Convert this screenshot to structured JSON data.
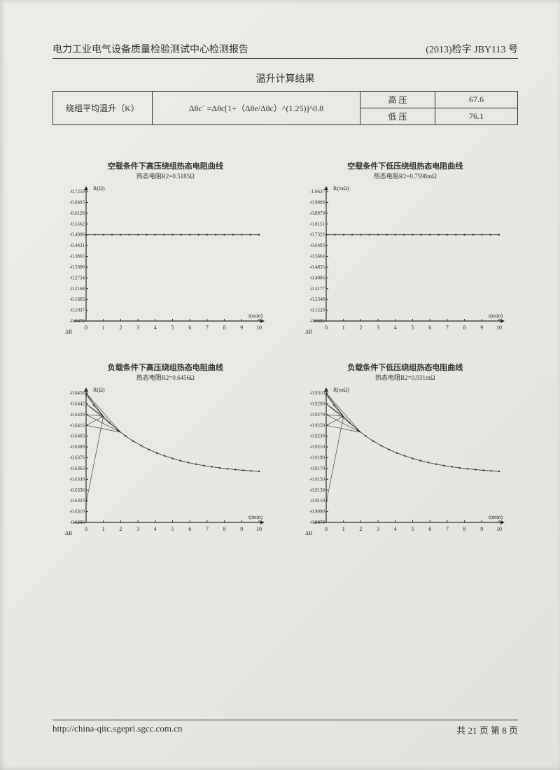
{
  "header": {
    "left": "电力工业电气设备质量检验测试中心检测报告",
    "right": "(2013)检字 JBY113 号"
  },
  "resultTitle": "温升计算结果",
  "table": {
    "rowLabel": "绕组平均温升（K）",
    "formula": "Δθc´ =Δθc[1+（Δθe/Δθc）^(1.25)]^0.8",
    "rows": [
      {
        "label": "高 压",
        "value": "67.6"
      },
      {
        "label": "低 压",
        "value": "76.1"
      }
    ]
  },
  "charts": [
    {
      "title": "空载条件下高压绕组热态电阻曲线",
      "subtitle": "热态电阻R2=0.5185Ω",
      "yunit": "R(Ω)",
      "yticks": [
        "0.7259",
        "0.6693",
        "0.6128",
        "0.5562",
        "0.4996",
        "0.4431",
        "0.3865",
        "0.3300",
        "0.2734",
        "0.2168",
        "0.1603",
        "0.1037",
        "0.0471"
      ],
      "xlabel": "t(min)",
      "xticks": [
        0,
        1,
        2,
        3,
        4,
        5,
        6,
        7,
        8,
        9,
        10
      ],
      "deltaLabel": "ΔR",
      "flat": 4,
      "decay": null,
      "colors": {
        "axis": "#2a2a2a",
        "data": "#2a2a2a",
        "grid": "#ccc",
        "text": "#333",
        "bg": "transparent"
      }
    },
    {
      "title": "空载条件下低压绕组热态电阻曲线",
      "subtitle": "热态电阻R2=0.7598mΩ",
      "yunit": "R(mΩ)",
      "yticks": [
        "1.0637",
        "0.9808",
        "0.8979",
        "0.8151",
        "0.7322",
        "0.6493",
        "0.5664",
        "0.4835",
        "0.4006",
        "0.3177",
        "0.2348",
        "0.1520",
        "0.0691"
      ],
      "xlabel": "t(min)",
      "xticks": [
        0,
        1,
        2,
        3,
        4,
        5,
        6,
        7,
        8,
        9,
        10
      ],
      "deltaLabel": "ΔR",
      "flat": 4,
      "decay": null,
      "colors": {
        "axis": "#2a2a2a",
        "data": "#2a2a2a",
        "grid": "#ccc",
        "text": "#333",
        "bg": "transparent"
      }
    },
    {
      "title": "负载条件下高压绕组热态电阻曲线",
      "subtitle": "热态电阻R2=0.6456Ω",
      "yunit": "R(Ω)",
      "yticks": [
        "0.6456",
        "0.6442",
        "0.6429",
        "0.6416",
        "0.6403",
        "0.6389",
        "0.6376",
        "0.6363",
        "0.6349",
        "0.6336",
        "0.6323",
        "0.6310",
        "0.6296"
      ],
      "xlabel": "t(min)",
      "xticks": [
        0,
        1,
        2,
        3,
        4,
        5,
        6,
        7,
        8,
        9,
        10
      ],
      "deltaLabel": "ΔR",
      "flat": null,
      "decay": true,
      "colors": {
        "axis": "#2a2a2a",
        "data": "#2a2a2a",
        "grid": "#ccc",
        "text": "#333",
        "bg": "transparent"
      }
    },
    {
      "title": "负载条件下低压绕组热态电阻曲线",
      "subtitle": "热态电阻R2=0.931mΩ",
      "yunit": "R(mΩ)",
      "yticks": [
        "0.9310",
        "0.9290",
        "0.9270",
        "0.9250",
        "0.9230",
        "0.9210",
        "0.9190",
        "0.9170",
        "0.9150",
        "0.9130",
        "0.9110",
        "0.9090",
        "0.9070"
      ],
      "xlabel": "t(min)",
      "xticks": [
        0,
        1,
        2,
        3,
        4,
        5,
        6,
        7,
        8,
        9,
        10
      ],
      "deltaLabel": "ΔR",
      "flat": null,
      "decay": true,
      "colors": {
        "axis": "#2a2a2a",
        "data": "#2a2a2a",
        "grid": "#ccc",
        "text": "#333",
        "bg": "transparent"
      }
    }
  ],
  "footer": {
    "url": "http://china-qitc.sgepri.sgcc.com.cn",
    "page": "共 21 页 第 8 页"
  }
}
